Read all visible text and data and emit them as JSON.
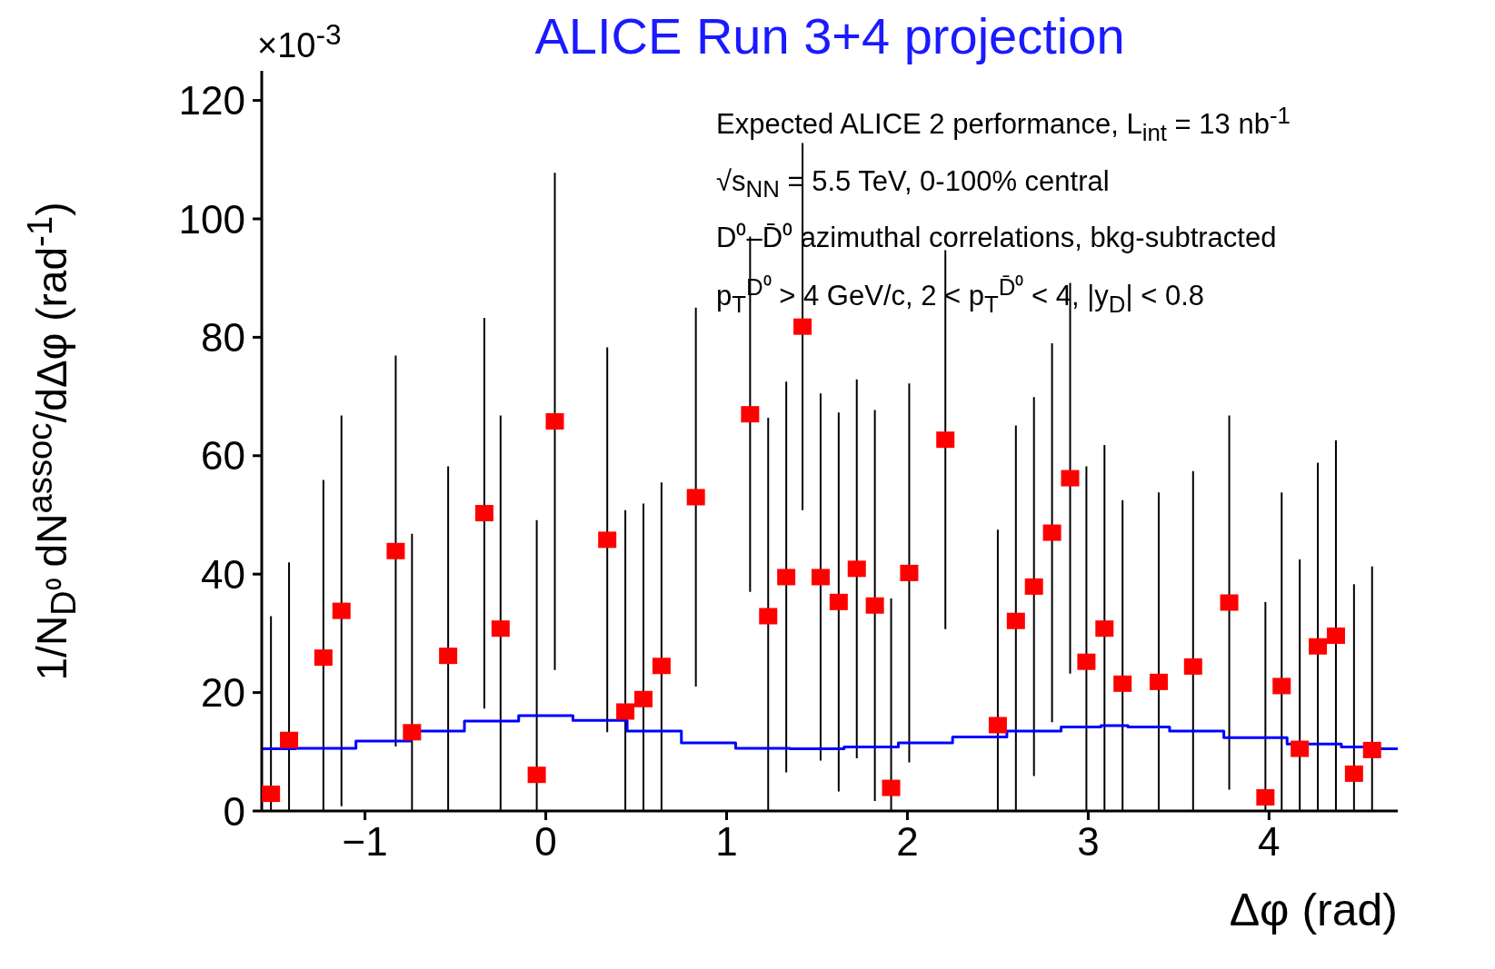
{
  "chart_data": {
    "type": "scatter",
    "title": "ALICE Run 3+4 projection",
    "xlabel": "Δφ (rad)",
    "ylabel": "1/N$_{D⁰}$ dN$^{assoc}$/dΔφ (rad$^{-1}$)",
    "annotations": [
      "×10$^{-3}$",
      "Expected ALICE 2 performance, L$_{int}$ = 13 nb$^{-1}$",
      "√s$_{NN}$ = 5.5 TeV, 0-100% central",
      "D⁰–D̄⁰ azimuthal correlations, bkg-subtracted",
      "p$_{T}$$^{D⁰}$ > 4 GeV/c, 2 < p$_{T}$$^{D̄⁰}$ < 4, |y$_{D}$| < 0.8"
    ],
    "xlim": [
      -1.571,
      4.712
    ],
    "xticks": [
      -1,
      0,
      1,
      2,
      3,
      4
    ],
    "ylim": [
      0,
      125
    ],
    "yticks": [
      0,
      20,
      40,
      60,
      80,
      100,
      120
    ],
    "legend": false,
    "series": [
      {
        "color": "#ff0000",
        "marker": "square",
        "x": [
          -1.52,
          -1.42,
          -1.23,
          -1.13,
          -0.83,
          -0.74,
          -0.54,
          -0.34,
          -0.25,
          -0.05,
          0.05,
          0.34,
          0.44,
          0.54,
          0.64,
          0.83,
          1.13,
          1.23,
          1.33,
          1.42,
          1.52,
          1.62,
          1.72,
          1.82,
          1.91,
          2.01,
          2.21,
          2.5,
          2.6,
          2.7,
          2.8,
          2.9,
          2.99,
          3.09,
          3.19,
          3.39,
          3.58,
          3.78,
          3.98,
          4.07,
          4.17,
          4.27,
          4.37,
          4.47,
          4.57
        ],
        "values": [
          2.9,
          12.0,
          25.9,
          33.8,
          43.9,
          13.3,
          26.2,
          50.3,
          30.8,
          6.1,
          65.8,
          45.8,
          16.8,
          18.9,
          24.5,
          53,
          67,
          32.9,
          39.5,
          81.8,
          39.5,
          35.3,
          40.9,
          34.7,
          3.9,
          40.2,
          62.7,
          14.5,
          32.1,
          37.9,
          47,
          56.2,
          25.2,
          30.8,
          21.5,
          21.8,
          24.4,
          35.2,
          2.3,
          21.1,
          10.5,
          27.8,
          29.6,
          6.3,
          10.3
        ],
        "errors": [
          [
            0,
            32.9
          ],
          [
            0,
            42
          ],
          [
            0,
            55.9
          ],
          33,
          33,
          [
            0,
            46.8
          ],
          [
            0,
            58.2
          ],
          33,
          [
            0,
            66.8
          ],
          [
            0,
            49.1
          ],
          42,
          32.5,
          [
            0,
            50.8
          ],
          [
            0,
            51.9
          ],
          [
            0,
            55.5
          ],
          32,
          30,
          [
            0,
            66.4
          ],
          33,
          31,
          31,
          32,
          32,
          33,
          [
            0,
            35.9
          ],
          32,
          32,
          [
            0,
            47.5
          ],
          [
            0,
            65.1
          ],
          32,
          32,
          33,
          [
            0,
            58.2
          ],
          [
            0,
            61.8
          ],
          [
            0,
            52.5
          ],
          [
            0,
            53.8
          ],
          [
            0,
            57.4
          ],
          31.6,
          [
            0,
            35.3
          ],
          [
            0,
            53.8
          ],
          [
            0,
            42.5
          ],
          [
            0,
            58.8
          ],
          [
            0,
            62.6
          ],
          [
            0,
            38.3
          ],
          [
            0,
            41.3
          ]
        ]
      },
      {
        "type": "step",
        "color": "#0000ff",
        "marker": "none",
        "x": [
          -1.571,
          -1.2,
          -0.9,
          -0.6,
          -0.3,
          0,
          0.3,
          0.6,
          0.9,
          1.2,
          1.5,
          1.8,
          2.1,
          2.4,
          2.7,
          3.0,
          3.14,
          3.3,
          3.6,
          3.9,
          4.3,
          4.5,
          4.712
        ],
        "values": [
          10.5,
          10.6,
          11.8,
          13.5,
          15.2,
          16.1,
          15.3,
          13.5,
          11.5,
          10.6,
          10.5,
          10.8,
          11.5,
          12.5,
          13.5,
          14.2,
          14.4,
          14.2,
          13.5,
          12.4,
          11.3,
          10.8,
          10.5
        ]
      }
    ]
  }
}
